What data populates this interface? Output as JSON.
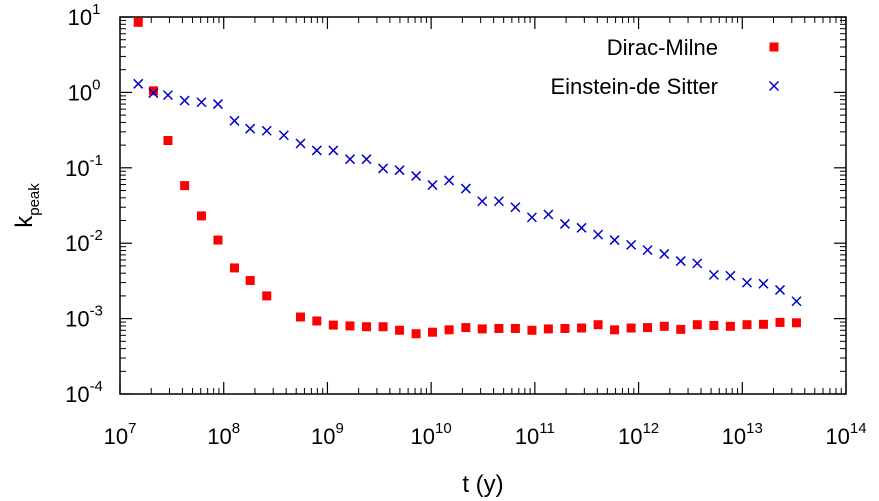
{
  "chart_data": {
    "type": "scatter",
    "title": "",
    "xlabel": "t (y)",
    "ylabel": {
      "base": "k",
      "subscript": "peak"
    },
    "x_scale": "log",
    "y_scale": "log",
    "xlim": [
      10000000,
      100000000000000
    ],
    "ylim": [
      0.0001,
      10
    ],
    "x_ticks": [
      {
        "value": 10000000,
        "base": "10",
        "exp": "7"
      },
      {
        "value": 100000000,
        "base": "10",
        "exp": "8"
      },
      {
        "value": 1000000000,
        "base": "10",
        "exp": "9"
      },
      {
        "value": 10000000000,
        "base": "10",
        "exp": "10"
      },
      {
        "value": 100000000000,
        "base": "10",
        "exp": "11"
      },
      {
        "value": 1000000000000,
        "base": "10",
        "exp": "12"
      },
      {
        "value": 10000000000000,
        "base": "10",
        "exp": "13"
      },
      {
        "value": 100000000000000,
        "base": "10",
        "exp": "14"
      }
    ],
    "y_ticks": [
      {
        "value": 0.0001,
        "base": "10",
        "exp": "-4"
      },
      {
        "value": 0.001,
        "base": "10",
        "exp": "-3"
      },
      {
        "value": 0.01,
        "base": "10",
        "exp": "-2"
      },
      {
        "value": 0.1,
        "base": "10",
        "exp": "-1"
      },
      {
        "value": 1,
        "base": "10",
        "exp": "0"
      },
      {
        "value": 10,
        "base": "10",
        "exp": "1"
      }
    ],
    "grid": false,
    "legend_position": "top-right",
    "series": [
      {
        "name": "Dirac-Milne",
        "marker": "square",
        "color": "#ff0000",
        "points": [
          [
            15000000.0,
            8.5
          ],
          [
            21000000.0,
            1.05
          ],
          [
            29000000.0,
            0.23
          ],
          [
            42000000.0,
            0.058
          ],
          [
            61000000.0,
            0.023
          ],
          [
            88000000.0,
            0.011
          ],
          [
            127000000.0,
            0.0047
          ],
          [
            180000000.0,
            0.0032
          ],
          [
            260000000.0,
            0.002
          ],
          [
            550000000.0,
            0.00105
          ],
          [
            790000000.0,
            0.00093
          ],
          [
            1140000000.0,
            0.00082
          ],
          [
            1650000000.0,
            0.0008
          ],
          [
            2380000000.0,
            0.00078
          ],
          [
            3440000000.0,
            0.00078
          ],
          [
            4960000000.0,
            0.0007
          ],
          [
            7160000000.0,
            0.00063
          ],
          [
            10300000000.0,
            0.00066
          ],
          [
            14900000000.0,
            0.00071
          ],
          [
            21600000000.0,
            0.00076
          ],
          [
            31100000000.0,
            0.00073
          ],
          [
            45000000000.0,
            0.00074
          ],
          [
            64900000000.0,
            0.00074
          ],
          [
            93700000000.0,
            0.0007
          ],
          [
            135000000000.0,
            0.00073
          ],
          [
            195000000000.0,
            0.00074
          ],
          [
            282000000000.0,
            0.00075
          ],
          [
            407000000000.0,
            0.00083
          ],
          [
            587000000000.0,
            0.00071
          ],
          [
            848000000000.0,
            0.00075
          ],
          [
            1220000000000.0,
            0.00076
          ],
          [
            1770000000000.0,
            0.00079
          ],
          [
            2550000000000.0,
            0.00072
          ],
          [
            3680000000000.0,
            0.00083
          ],
          [
            5320000000000.0,
            0.00081
          ],
          [
            7680000000000.0,
            0.00079
          ],
          [
            11100000000000.0,
            0.00083
          ],
          [
            16000000000000.0,
            0.00084
          ],
          [
            23100000000000.0,
            0.00089
          ],
          [
            33300000000000.0,
            0.00088
          ]
        ]
      },
      {
        "name": "Einstein-de Sitter",
        "marker": "x",
        "color": "#0000cc",
        "points": [
          [
            15000000.0,
            1.3
          ],
          [
            21000000.0,
            0.98
          ],
          [
            29000000.0,
            0.92
          ],
          [
            42000000.0,
            0.78
          ],
          [
            61000000.0,
            0.74
          ],
          [
            88000000.0,
            0.7
          ],
          [
            127000000.0,
            0.42
          ],
          [
            180000000.0,
            0.33
          ],
          [
            260000000.0,
            0.31
          ],
          [
            380000000.0,
            0.27
          ],
          [
            550000000.0,
            0.21
          ],
          [
            790000000.0,
            0.17
          ],
          [
            1140000000.0,
            0.17
          ],
          [
            1650000000.0,
            0.13
          ],
          [
            2380000000.0,
            0.13
          ],
          [
            3440000000.0,
            0.098
          ],
          [
            4960000000.0,
            0.093
          ],
          [
            7160000000.0,
            0.078
          ],
          [
            10300000000.0,
            0.059
          ],
          [
            14900000000.0,
            0.068
          ],
          [
            21600000000.0,
            0.053
          ],
          [
            31100000000.0,
            0.036
          ],
          [
            45000000000.0,
            0.036
          ],
          [
            64900000000.0,
            0.03
          ],
          [
            93700000000.0,
            0.022
          ],
          [
            135000000000.0,
            0.024
          ],
          [
            195000000000.0,
            0.018
          ],
          [
            282000000000.0,
            0.016
          ],
          [
            407000000000.0,
            0.013
          ],
          [
            587000000000.0,
            0.011
          ],
          [
            848000000000.0,
            0.0095
          ],
          [
            1220000000000.0,
            0.0081
          ],
          [
            1770000000000.0,
            0.0072
          ],
          [
            2550000000000.0,
            0.0058
          ],
          [
            3680000000000.0,
            0.0054
          ],
          [
            5320000000000.0,
            0.0038
          ],
          [
            7680000000000.0,
            0.0037
          ],
          [
            11100000000000.0,
            0.003
          ],
          [
            16000000000000.0,
            0.0029
          ],
          [
            23100000000000.0,
            0.0024
          ],
          [
            33300000000000.0,
            0.0017
          ]
        ]
      }
    ]
  }
}
